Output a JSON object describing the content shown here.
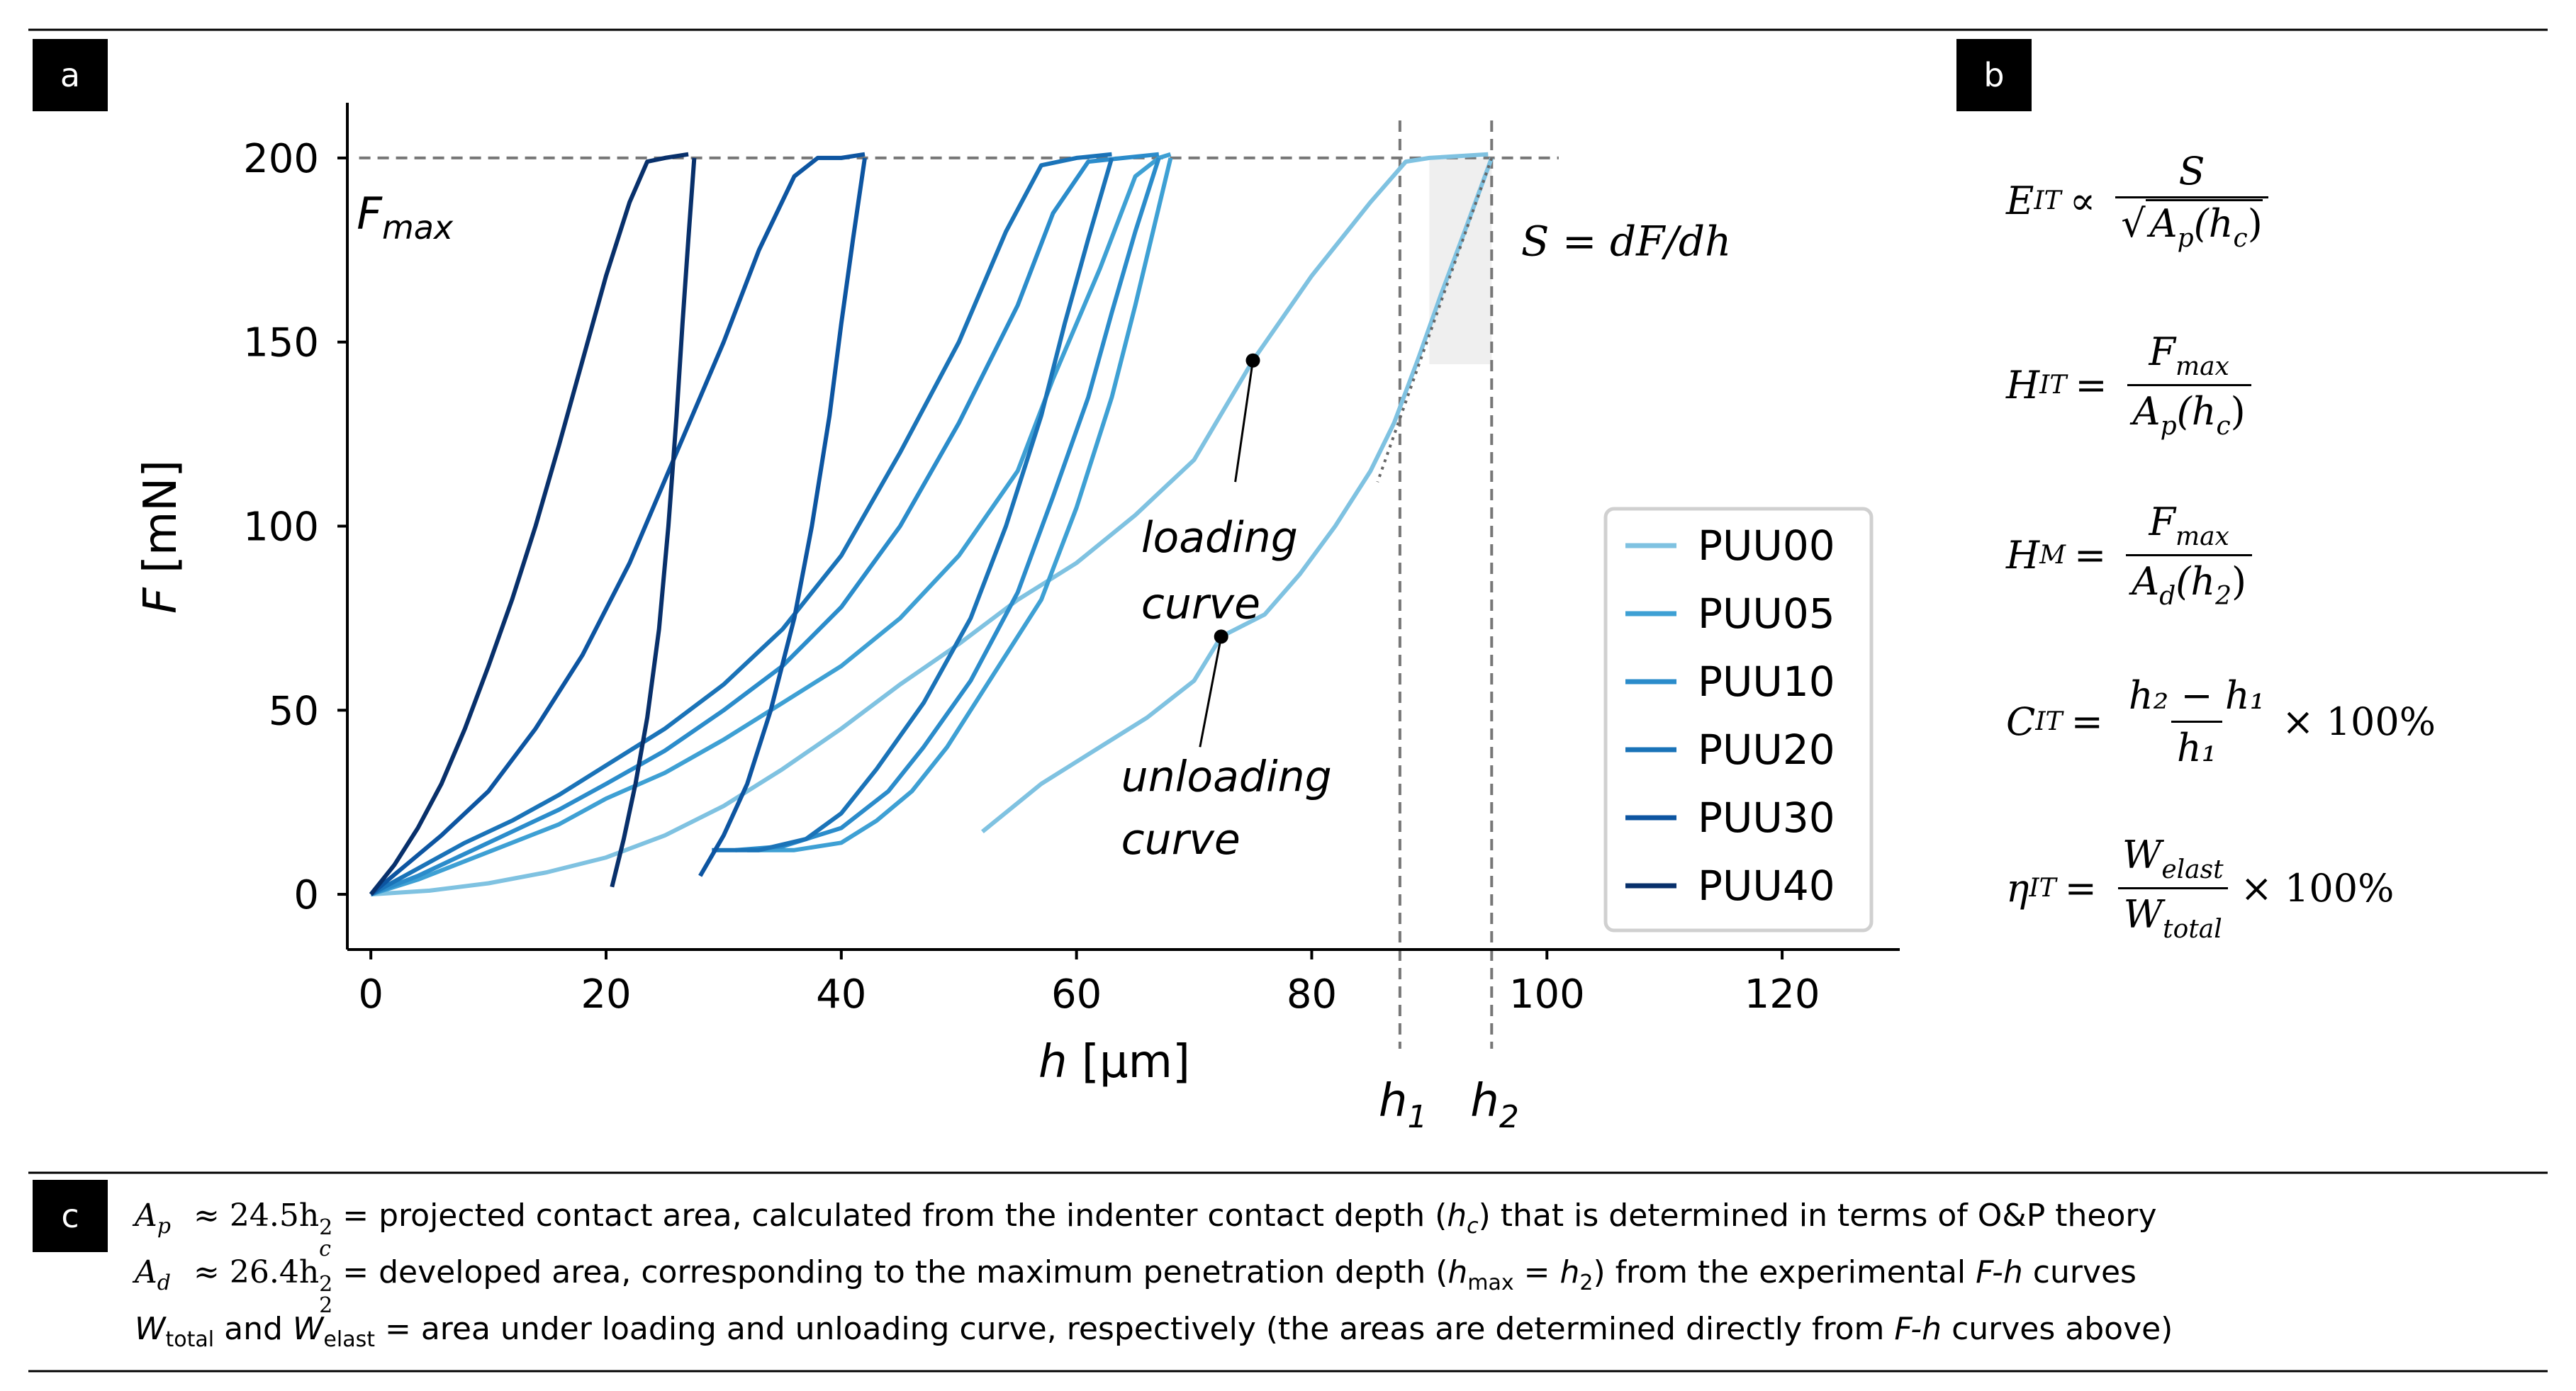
{
  "panels": {
    "a": "a",
    "b": "b",
    "c": "c"
  },
  "chart_data": {
    "type": "line",
    "xlabel_var": "h",
    "xlabel_unit": "[μm]",
    "ylabel_var": "F",
    "ylabel_unit": "[mN]",
    "xlim": [
      -2,
      130
    ],
    "ylim": [
      -15,
      215
    ],
    "x_ticks": [
      0,
      20,
      40,
      60,
      80,
      100,
      120
    ],
    "y_ticks": [
      0,
      50,
      100,
      150,
      200
    ],
    "fmax_line": 200,
    "fmax_label_main": "F",
    "fmax_label_sub": "max",
    "h1": {
      "value": 87.5,
      "label_main": "h",
      "label_sub": "1"
    },
    "h2": {
      "value": 95.3,
      "label_main": "h",
      "label_sub": "2"
    },
    "stiffness_label": "S = dF/dh",
    "annotations": {
      "loading": {
        "line1": "loading",
        "line2": "curve",
        "point": [
          75,
          145
        ]
      },
      "unloading": {
        "line1": "unloading",
        "line2": "curve",
        "point": [
          72.3,
          70
        ]
      }
    },
    "series": [
      {
        "name": "PUU00",
        "color": "#7fc2e1",
        "loading": [
          [
            0,
            0
          ],
          [
            5,
            1
          ],
          [
            10,
            3
          ],
          [
            15,
            6
          ],
          [
            20,
            10
          ],
          [
            25,
            16
          ],
          [
            30,
            24
          ],
          [
            35,
            34
          ],
          [
            40,
            45
          ],
          [
            45,
            57
          ],
          [
            50,
            68
          ],
          [
            55,
            80
          ],
          [
            60,
            90
          ],
          [
            65,
            103
          ],
          [
            70,
            118
          ],
          [
            75,
            145
          ],
          [
            80,
            168
          ],
          [
            85,
            188
          ],
          [
            88,
            199
          ],
          [
            90,
            200
          ],
          [
            95,
            201
          ]
        ],
        "unloading": [
          [
            95.3,
            200
          ],
          [
            93,
            180
          ],
          [
            91,
            163
          ],
          [
            89,
            145
          ],
          [
            87,
            128
          ],
          [
            85,
            115
          ],
          [
            82,
            100
          ],
          [
            79,
            87
          ],
          [
            76,
            76
          ],
          [
            72.3,
            70
          ],
          [
            70,
            58
          ],
          [
            66,
            48
          ],
          [
            62,
            40
          ],
          [
            57,
            30
          ],
          [
            52,
            17
          ]
        ]
      },
      {
        "name": "PUU05",
        "color": "#3ea0d4",
        "loading": [
          [
            0,
            0
          ],
          [
            4,
            4
          ],
          [
            8,
            9
          ],
          [
            12,
            14
          ],
          [
            16,
            19
          ],
          [
            20,
            26
          ],
          [
            25,
            33
          ],
          [
            30,
            42
          ],
          [
            35,
            52
          ],
          [
            40,
            62
          ],
          [
            45,
            75
          ],
          [
            50,
            92
          ],
          [
            55,
            115
          ],
          [
            58,
            140
          ],
          [
            62,
            170
          ],
          [
            65,
            195
          ],
          [
            67,
            200
          ],
          [
            68,
            201
          ]
        ],
        "unloading": [
          [
            68,
            200
          ],
          [
            66.5,
            180
          ],
          [
            65,
            160
          ],
          [
            63,
            135
          ],
          [
            60,
            105
          ],
          [
            57,
            80
          ],
          [
            53,
            60
          ],
          [
            49,
            40
          ],
          [
            46,
            28
          ],
          [
            43,
            20
          ],
          [
            40,
            14
          ],
          [
            36,
            12
          ],
          [
            32,
            12
          ]
        ]
      },
      {
        "name": "PUU10",
        "color": "#2b8ccb",
        "loading": [
          [
            0,
            0
          ],
          [
            4,
            5
          ],
          [
            8,
            11
          ],
          [
            12,
            17
          ],
          [
            16,
            23
          ],
          [
            20,
            30
          ],
          [
            25,
            39
          ],
          [
            30,
            50
          ],
          [
            35,
            62
          ],
          [
            40,
            78
          ],
          [
            45,
            100
          ],
          [
            50,
            128
          ],
          [
            55,
            160
          ],
          [
            58,
            185
          ],
          [
            61,
            199
          ],
          [
            64,
            200
          ],
          [
            67,
            201
          ]
        ],
        "unloading": [
          [
            67,
            200
          ],
          [
            65,
            180
          ],
          [
            63,
            158
          ],
          [
            61,
            135
          ],
          [
            58,
            108
          ],
          [
            55,
            82
          ],
          [
            51,
            58
          ],
          [
            47,
            40
          ],
          [
            44,
            28
          ],
          [
            40,
            18
          ],
          [
            35,
            13
          ],
          [
            31,
            12
          ]
        ]
      },
      {
        "name": "PUU20",
        "color": "#1a73b8",
        "loading": [
          [
            0,
            0
          ],
          [
            4,
            7
          ],
          [
            8,
            14
          ],
          [
            12,
            20
          ],
          [
            16,
            27
          ],
          [
            20,
            35
          ],
          [
            25,
            45
          ],
          [
            30,
            57
          ],
          [
            35,
            72
          ],
          [
            40,
            92
          ],
          [
            45,
            120
          ],
          [
            50,
            150
          ],
          [
            54,
            180
          ],
          [
            57,
            198
          ],
          [
            60,
            200
          ],
          [
            63,
            201
          ]
        ],
        "unloading": [
          [
            63,
            200
          ],
          [
            61,
            178
          ],
          [
            59,
            155
          ],
          [
            57,
            130
          ],
          [
            54,
            100
          ],
          [
            51,
            75
          ],
          [
            47,
            52
          ],
          [
            43,
            34
          ],
          [
            40,
            22
          ],
          [
            37,
            15
          ],
          [
            33,
            12
          ],
          [
            29,
            12
          ]
        ]
      },
      {
        "name": "PUU30",
        "color": "#0d55a1",
        "loading": [
          [
            0,
            0
          ],
          [
            3,
            8
          ],
          [
            6,
            16
          ],
          [
            10,
            28
          ],
          [
            14,
            45
          ],
          [
            18,
            65
          ],
          [
            22,
            90
          ],
          [
            26,
            120
          ],
          [
            30,
            150
          ],
          [
            33,
            175
          ],
          [
            36,
            195
          ],
          [
            38,
            200
          ],
          [
            40,
            200
          ],
          [
            42,
            201
          ]
        ],
        "unloading": [
          [
            42,
            200
          ],
          [
            41,
            178
          ],
          [
            40,
            155
          ],
          [
            39,
            130
          ],
          [
            37.5,
            100
          ],
          [
            36,
            75
          ],
          [
            34,
            50
          ],
          [
            32,
            30
          ],
          [
            30,
            16
          ],
          [
            28,
            5
          ]
        ]
      },
      {
        "name": "PUU40",
        "color": "#08306b",
        "loading": [
          [
            0,
            0
          ],
          [
            2,
            8
          ],
          [
            4,
            18
          ],
          [
            6,
            30
          ],
          [
            8,
            45
          ],
          [
            10,
            62
          ],
          [
            12,
            80
          ],
          [
            14,
            100
          ],
          [
            16,
            122
          ],
          [
            18,
            145
          ],
          [
            20,
            168
          ],
          [
            22,
            188
          ],
          [
            23.5,
            199
          ],
          [
            25,
            200
          ],
          [
            27,
            201
          ]
        ],
        "unloading": [
          [
            27.5,
            200
          ],
          [
            27,
            178
          ],
          [
            26.5,
            155
          ],
          [
            26,
            130
          ],
          [
            25.3,
            100
          ],
          [
            24.5,
            72
          ],
          [
            23.5,
            48
          ],
          [
            22.5,
            30
          ],
          [
            21.5,
            15
          ],
          [
            20.5,
            2
          ]
        ]
      }
    ]
  },
  "equations": {
    "eit": {
      "lhs": "E",
      "lhs_sub": "IT",
      "op": "∝",
      "num": "S",
      "den_main": "A",
      "den_sub": "p",
      "den_arg": "(h",
      "den_arg_sub": "c",
      "den_close": ")"
    },
    "hit": {
      "lhs": "H",
      "lhs_sub": "IT",
      "op": "=",
      "num_main": "F",
      "num_sub": "max",
      "den_main": "A",
      "den_sub": "p",
      "den_arg": "(h",
      "den_arg_sub": "c",
      "den_close": ")"
    },
    "hm": {
      "lhs": "H",
      "lhs_sub": "M",
      "op": "=",
      "num_main": "F",
      "num_sub": "max",
      "den_main": "A",
      "den_sub": "d",
      "den_arg": "(h",
      "den_arg_sub": "2",
      "den_close": ")"
    },
    "cit": {
      "lhs": "C",
      "lhs_sub": "IT",
      "op": "=",
      "num": "h₂ − h₁",
      "den": "h₁",
      "tail": "× 100%"
    },
    "eta": {
      "lhs": "η",
      "lhs_sub": "IT",
      "op": "=",
      "num_main": "W",
      "num_sub": "elast",
      "den_main": "W",
      "den_sub": "total",
      "tail": "× 100%"
    }
  },
  "caption": {
    "line1": {
      "var": "A",
      "var_sub": "p",
      "approx": "≈ 24.5h",
      "approx_sub": "c",
      "approx_sup": "2",
      "text_a": " = projected contact area, calculated from the indenter contact depth (",
      "h": "h",
      "h_sub": "c",
      "text_b": ") that is determined in terms of O&P theory"
    },
    "line2": {
      "var": "A",
      "var_sub": "d",
      "approx": "≈ 26.4h",
      "approx_sub": "2",
      "approx_sup": "2",
      "text_a": " = developed area, corresponding to the maximum penetration depth (",
      "h": "h",
      "h_sub": "max",
      "eq": " = ",
      "h2": "h",
      "h2_sub": "2",
      "text_b": ") from the experimental ",
      "fh": "F-h",
      "text_c": " curves"
    },
    "line3": {
      "w1": "W",
      "w1_sub": "total",
      "and": " and ",
      "w2": "W",
      "w2_sub": "elast",
      "text_a": " = area under loading and unloading curve, respectively (the areas are determined directly from ",
      "fh": "F-h",
      "text_b": " curves above)"
    }
  }
}
